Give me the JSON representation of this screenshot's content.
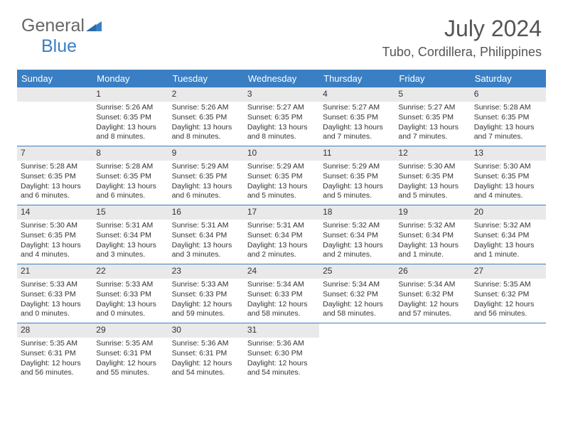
{
  "logo": {
    "text1": "General",
    "text2": "Blue",
    "text1_color": "#666666",
    "text2_color": "#3a7fc4",
    "icon_color": "#3a7fc4"
  },
  "title": "July 2024",
  "location": "Tubo, Cordillera, Philippines",
  "colors": {
    "header_bg": "#3a7fc4",
    "header_text": "#ffffff",
    "daynum_bg": "#e9e9e9",
    "week_divider": "#3a7fc4",
    "text": "#333333"
  },
  "day_headers": [
    "Sunday",
    "Monday",
    "Tuesday",
    "Wednesday",
    "Thursday",
    "Friday",
    "Saturday"
  ],
  "weeks": [
    [
      {
        "n": "",
        "sunrise": "",
        "sunset": "",
        "daylight": ""
      },
      {
        "n": "1",
        "sunrise": "5:26 AM",
        "sunset": "6:35 PM",
        "daylight": "13 hours and 8 minutes."
      },
      {
        "n": "2",
        "sunrise": "5:26 AM",
        "sunset": "6:35 PM",
        "daylight": "13 hours and 8 minutes."
      },
      {
        "n": "3",
        "sunrise": "5:27 AM",
        "sunset": "6:35 PM",
        "daylight": "13 hours and 8 minutes."
      },
      {
        "n": "4",
        "sunrise": "5:27 AM",
        "sunset": "6:35 PM",
        "daylight": "13 hours and 7 minutes."
      },
      {
        "n": "5",
        "sunrise": "5:27 AM",
        "sunset": "6:35 PM",
        "daylight": "13 hours and 7 minutes."
      },
      {
        "n": "6",
        "sunrise": "5:28 AM",
        "sunset": "6:35 PM",
        "daylight": "13 hours and 7 minutes."
      }
    ],
    [
      {
        "n": "7",
        "sunrise": "5:28 AM",
        "sunset": "6:35 PM",
        "daylight": "13 hours and 6 minutes."
      },
      {
        "n": "8",
        "sunrise": "5:28 AM",
        "sunset": "6:35 PM",
        "daylight": "13 hours and 6 minutes."
      },
      {
        "n": "9",
        "sunrise": "5:29 AM",
        "sunset": "6:35 PM",
        "daylight": "13 hours and 6 minutes."
      },
      {
        "n": "10",
        "sunrise": "5:29 AM",
        "sunset": "6:35 PM",
        "daylight": "13 hours and 5 minutes."
      },
      {
        "n": "11",
        "sunrise": "5:29 AM",
        "sunset": "6:35 PM",
        "daylight": "13 hours and 5 minutes."
      },
      {
        "n": "12",
        "sunrise": "5:30 AM",
        "sunset": "6:35 PM",
        "daylight": "13 hours and 5 minutes."
      },
      {
        "n": "13",
        "sunrise": "5:30 AM",
        "sunset": "6:35 PM",
        "daylight": "13 hours and 4 minutes."
      }
    ],
    [
      {
        "n": "14",
        "sunrise": "5:30 AM",
        "sunset": "6:35 PM",
        "daylight": "13 hours and 4 minutes."
      },
      {
        "n": "15",
        "sunrise": "5:31 AM",
        "sunset": "6:34 PM",
        "daylight": "13 hours and 3 minutes."
      },
      {
        "n": "16",
        "sunrise": "5:31 AM",
        "sunset": "6:34 PM",
        "daylight": "13 hours and 3 minutes."
      },
      {
        "n": "17",
        "sunrise": "5:31 AM",
        "sunset": "6:34 PM",
        "daylight": "13 hours and 2 minutes."
      },
      {
        "n": "18",
        "sunrise": "5:32 AM",
        "sunset": "6:34 PM",
        "daylight": "13 hours and 2 minutes."
      },
      {
        "n": "19",
        "sunrise": "5:32 AM",
        "sunset": "6:34 PM",
        "daylight": "13 hours and 1 minute."
      },
      {
        "n": "20",
        "sunrise": "5:32 AM",
        "sunset": "6:34 PM",
        "daylight": "13 hours and 1 minute."
      }
    ],
    [
      {
        "n": "21",
        "sunrise": "5:33 AM",
        "sunset": "6:33 PM",
        "daylight": "13 hours and 0 minutes."
      },
      {
        "n": "22",
        "sunrise": "5:33 AM",
        "sunset": "6:33 PM",
        "daylight": "13 hours and 0 minutes."
      },
      {
        "n": "23",
        "sunrise": "5:33 AM",
        "sunset": "6:33 PM",
        "daylight": "12 hours and 59 minutes."
      },
      {
        "n": "24",
        "sunrise": "5:34 AM",
        "sunset": "6:33 PM",
        "daylight": "12 hours and 58 minutes."
      },
      {
        "n": "25",
        "sunrise": "5:34 AM",
        "sunset": "6:32 PM",
        "daylight": "12 hours and 58 minutes."
      },
      {
        "n": "26",
        "sunrise": "5:34 AM",
        "sunset": "6:32 PM",
        "daylight": "12 hours and 57 minutes."
      },
      {
        "n": "27",
        "sunrise": "5:35 AM",
        "sunset": "6:32 PM",
        "daylight": "12 hours and 56 minutes."
      }
    ],
    [
      {
        "n": "28",
        "sunrise": "5:35 AM",
        "sunset": "6:31 PM",
        "daylight": "12 hours and 56 minutes."
      },
      {
        "n": "29",
        "sunrise": "5:35 AM",
        "sunset": "6:31 PM",
        "daylight": "12 hours and 55 minutes."
      },
      {
        "n": "30",
        "sunrise": "5:36 AM",
        "sunset": "6:31 PM",
        "daylight": "12 hours and 54 minutes."
      },
      {
        "n": "31",
        "sunrise": "5:36 AM",
        "sunset": "6:30 PM",
        "daylight": "12 hours and 54 minutes."
      },
      {
        "n": "",
        "sunrise": "",
        "sunset": "",
        "daylight": ""
      },
      {
        "n": "",
        "sunrise": "",
        "sunset": "",
        "daylight": ""
      },
      {
        "n": "",
        "sunrise": "",
        "sunset": "",
        "daylight": ""
      }
    ]
  ],
  "labels": {
    "sunrise": "Sunrise:",
    "sunset": "Sunset:",
    "daylight": "Daylight:"
  }
}
